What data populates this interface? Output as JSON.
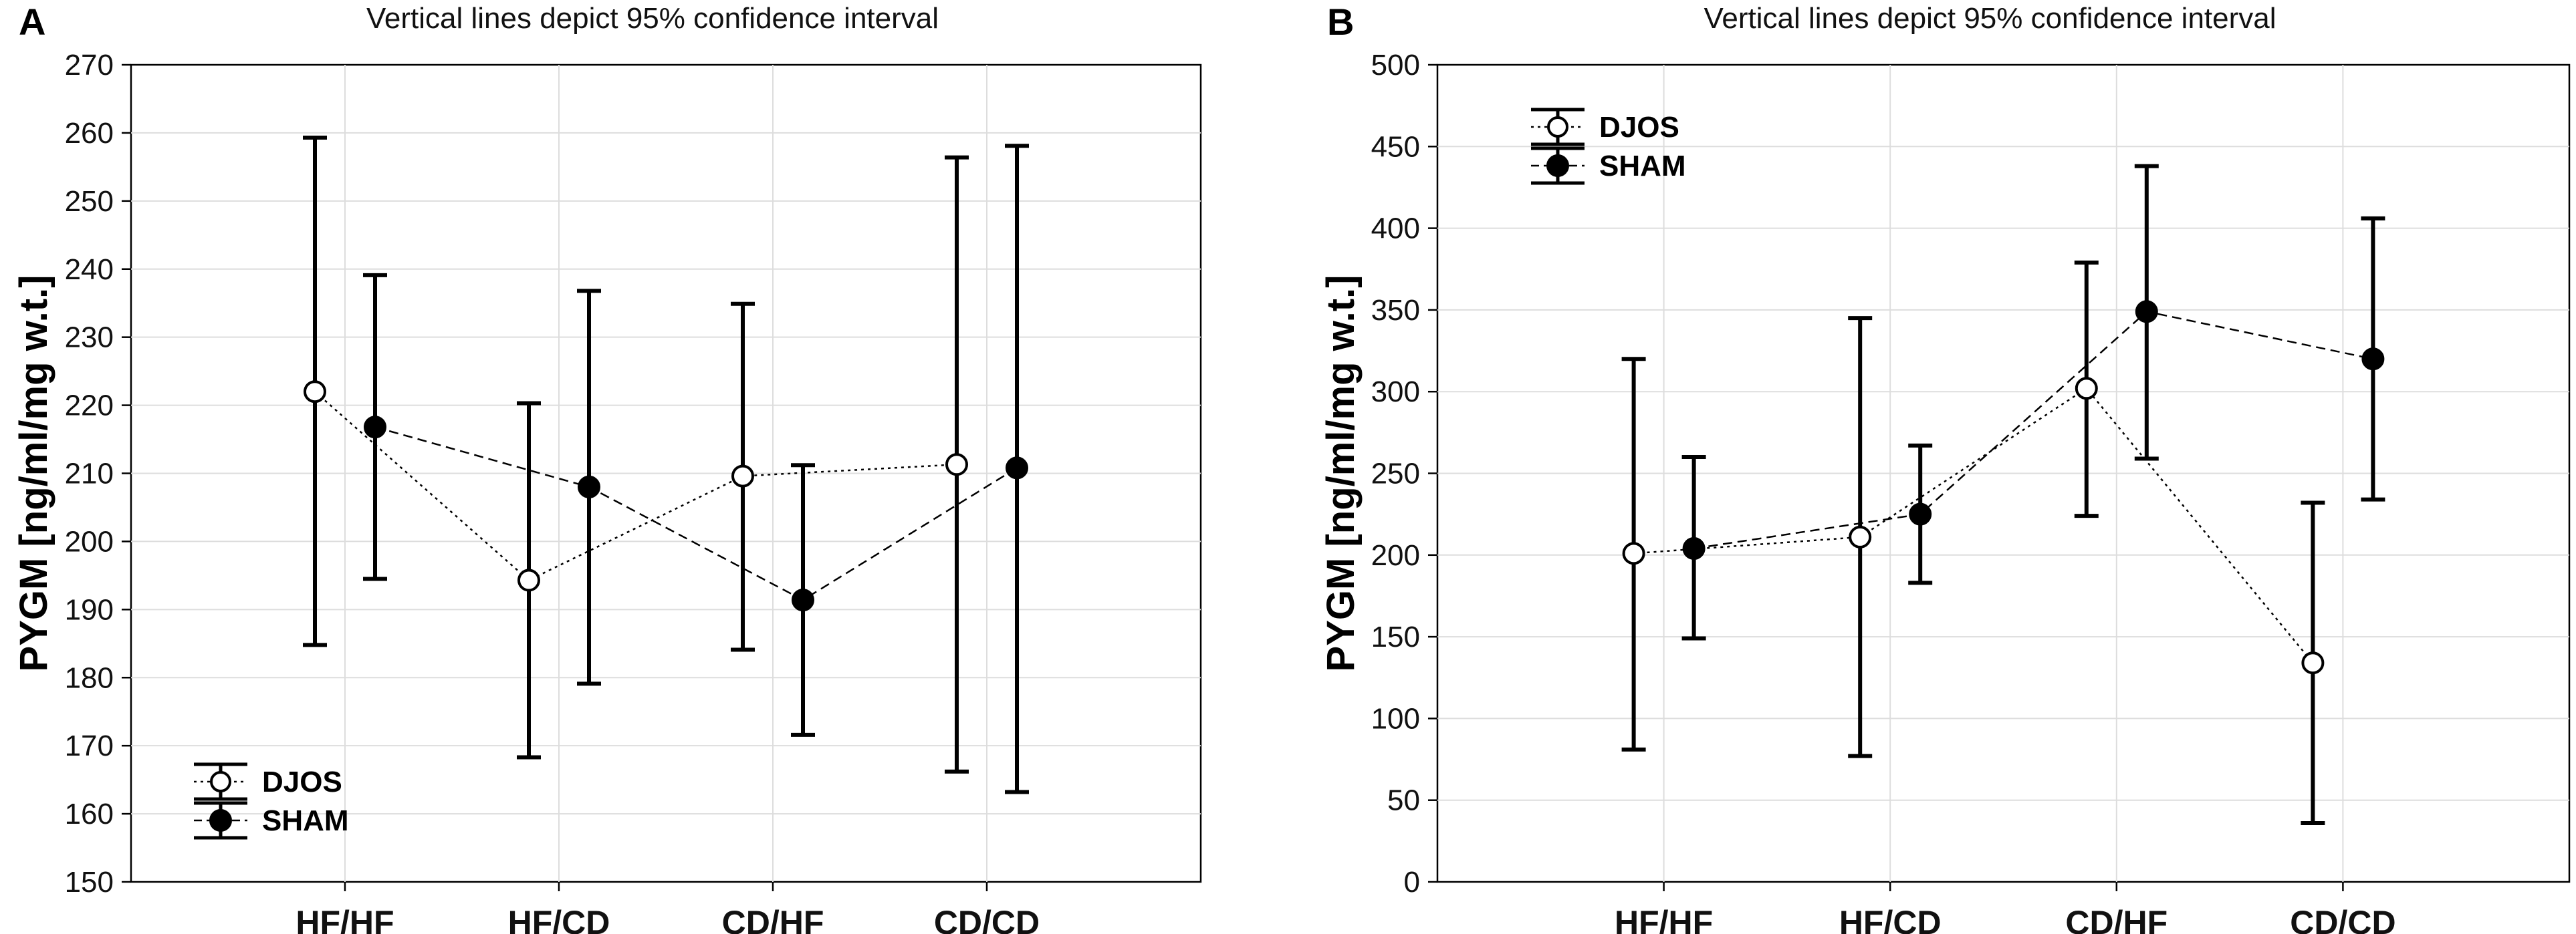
{
  "chart_data": [
    {
      "panel_label": "A",
      "type": "line",
      "title": "Vertical lines depict 95% confidence interval",
      "ylabel": "PYGM [ng/ml/mg w.t.]",
      "xlabel": "",
      "ylim": [
        150,
        270
      ],
      "yticks": [
        150,
        160,
        170,
        180,
        190,
        200,
        210,
        220,
        230,
        240,
        250,
        260,
        270
      ],
      "categories": [
        "HF/HF",
        "HF/CD",
        "CD/HF",
        "CD/CD"
      ],
      "grid": true,
      "legend_position": "bottom-left",
      "series": [
        {
          "name": "DJOS",
          "marker": "open-circle",
          "linestyle": "dotted",
          "values": [
            222,
            194.3,
            209.6,
            211.3
          ],
          "ci_low": [
            184.8,
            168.3,
            184.1,
            166.2
          ],
          "ci_high": [
            259.3,
            220.3,
            234.9,
            256.4
          ]
        },
        {
          "name": "SHAM",
          "marker": "filled-circle",
          "linestyle": "dashed",
          "values": [
            216.8,
            208,
            191.4,
            210.8
          ],
          "ci_low": [
            194.5,
            179.1,
            171.6,
            163.2
          ],
          "ci_high": [
            239.1,
            236.8,
            211.2,
            258.1
          ]
        }
      ]
    },
    {
      "panel_label": "B",
      "type": "line",
      "title": "Vertical lines depict 95% confidence interval",
      "ylabel": "PYGM [ng/ml/mg w.t.]",
      "xlabel": "",
      "ylim": [
        0,
        500
      ],
      "yticks": [
        0,
        50,
        100,
        150,
        200,
        250,
        300,
        350,
        400,
        450,
        500
      ],
      "categories": [
        "HF/HF",
        "HF/CD",
        "CD/HF",
        "CD/CD"
      ],
      "grid": true,
      "legend_position": "top-left",
      "series": [
        {
          "name": "DJOS",
          "marker": "open-circle",
          "linestyle": "dotted",
          "values": [
            201,
            211,
            302,
            134
          ],
          "ci_low": [
            81,
            77,
            224,
            36
          ],
          "ci_high": [
            320,
            345,
            379,
            232
          ]
        },
        {
          "name": "SHAM",
          "marker": "filled-circle",
          "linestyle": "dashed",
          "values": [
            204,
            225,
            349,
            320
          ],
          "ci_low": [
            149,
            183,
            259,
            234
          ],
          "ci_high": [
            260,
            267,
            438,
            406
          ]
        }
      ]
    }
  ]
}
